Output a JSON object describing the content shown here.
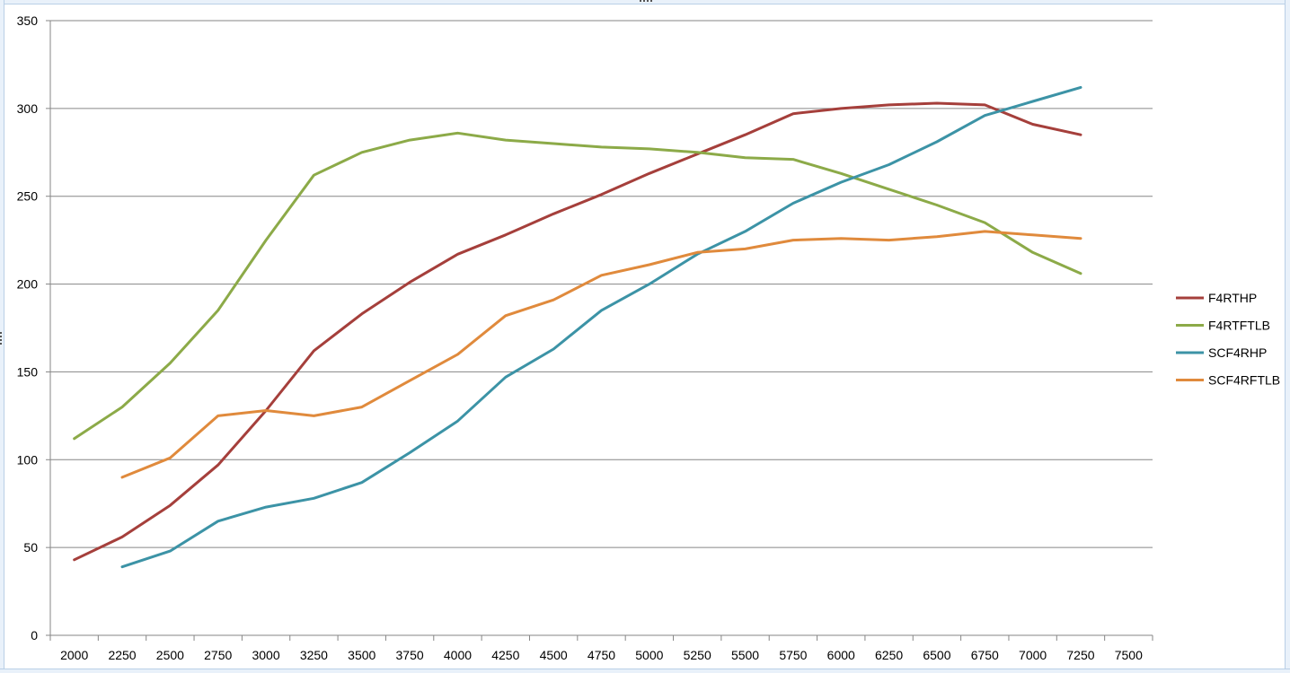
{
  "chart_data": {
    "type": "line",
    "title": "",
    "xlabel": "",
    "ylabel": "",
    "x": [
      2000,
      2250,
      2500,
      2750,
      3000,
      3250,
      3500,
      3750,
      4000,
      4250,
      4500,
      4750,
      5000,
      5250,
      5500,
      5750,
      6000,
      6250,
      6500,
      6750,
      7000,
      7250,
      7500
    ],
    "ylim": [
      0,
      350
    ],
    "yticks": [
      0,
      50,
      100,
      150,
      200,
      250,
      300,
      350
    ],
    "grid": true,
    "legend_position": "right",
    "series": [
      {
        "name": "F4RTHP",
        "color": "#a53f3b",
        "values": [
          43,
          56,
          74,
          97,
          128,
          162,
          183,
          201,
          217,
          228,
          240,
          251,
          263,
          274,
          285,
          297,
          300,
          302,
          303,
          302,
          291,
          285,
          null
        ]
      },
      {
        "name": "F4RTFTLB",
        "color": "#8caa48",
        "values": [
          112,
          130,
          155,
          185,
          225,
          262,
          275,
          282,
          286,
          282,
          280,
          278,
          277,
          275,
          272,
          271,
          263,
          254,
          245,
          235,
          218,
          206,
          null
        ]
      },
      {
        "name": "SCF4RHP",
        "color": "#3c93a6",
        "values": [
          null,
          39,
          48,
          65,
          73,
          78,
          87,
          104,
          122,
          147,
          163,
          185,
          200,
          217,
          230,
          246,
          258,
          268,
          281,
          296,
          304,
          312,
          null
        ]
      },
      {
        "name": "SCF4RFTLB",
        "color": "#e08a3c",
        "values": [
          null,
          90,
          101,
          125,
          128,
          125,
          130,
          145,
          160,
          182,
          191,
          205,
          211,
          218,
          220,
          225,
          226,
          225,
          227,
          230,
          228,
          226,
          null
        ]
      }
    ]
  }
}
